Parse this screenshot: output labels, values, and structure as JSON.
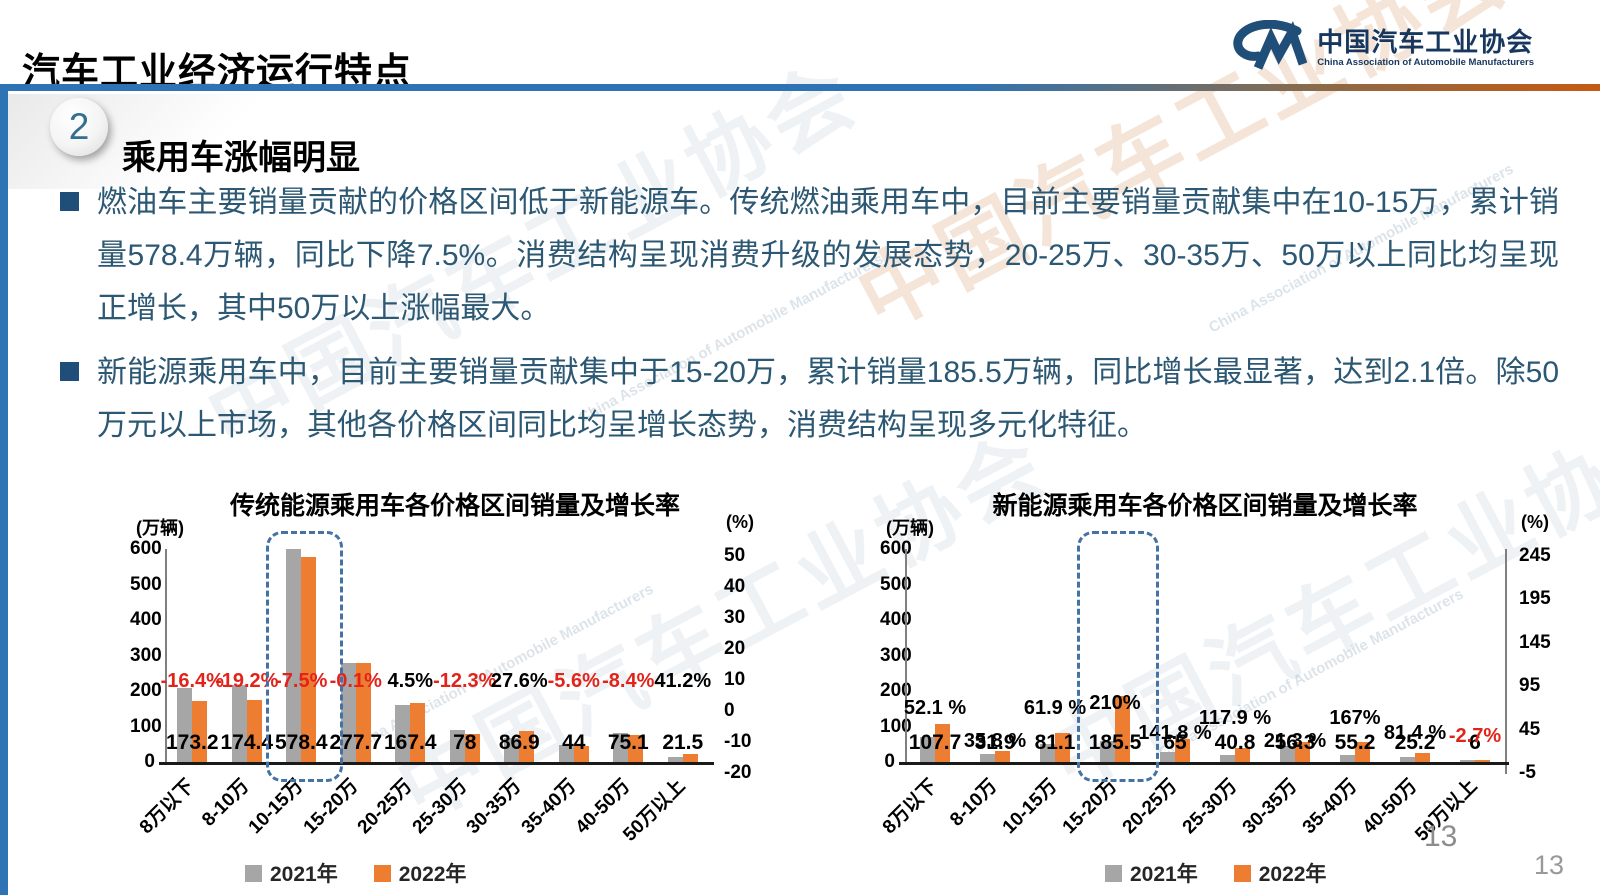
{
  "header": {
    "title": "汽车工业经济运行特点",
    "logo_cn": "中国汽车工业协会",
    "logo_en": "China Association of Automobile Manufacturers"
  },
  "section": {
    "number": "2",
    "title": "乘用车涨幅明显"
  },
  "bullets": [
    {
      "text": "燃油车主要销量贡献的价格区间低于新能源车。传统燃油乘用车中，目前主要销量贡献集中在10-15万，累计销量578.4万辆，同比下降7.5%。消费结构呈现消费升级的发展态势，20-25万、30-35万、50万以上同比均呈现正增长，其中50万以上涨幅最大。"
    },
    {
      "text": "新能源乘用车中，目前主要销量贡献集中于15-20万，累计销量185.5万辆，同比增长最显著，达到2.1倍。除50万元以上市场，其他各价格区间同比均呈增长态势，消费结构呈现多元化特征。"
    }
  ],
  "watermark": {
    "cn": "中国汽车工业协会",
    "en": "China Association of Automobile Manufacturers"
  },
  "page": {
    "number": "13",
    "number_inner": "13"
  },
  "colors": {
    "accent_blue": "#2E74B5",
    "text_blue": "#2D5873",
    "bullet_square": "#1F4E79",
    "bar_2021": "#A6A6A6",
    "bar_2022": "#ED7D31",
    "negative": "#E2231A",
    "highlight_border": "#4472A4"
  },
  "chart_data": [
    {
      "type": "bar",
      "title": "传统能源乘用车各价格区间销量及增长率",
      "unit_left": "(万辆)",
      "unit_right": "(%)",
      "ylim": [
        0,
        600
      ],
      "left_ticks": [
        600,
        500,
        400,
        300,
        200,
        100,
        0
      ],
      "right_ticks": [
        50,
        40,
        30,
        20,
        10,
        0,
        -10,
        -20
      ],
      "categories": [
        "8万以下",
        "8-10万",
        "10-15万",
        "15-20万",
        "20-25万",
        "25-30万",
        "30-35万",
        "35-40万",
        "40-50万",
        "50万以上"
      ],
      "series": [
        {
          "name": "2021年",
          "color": "#A6A6A6",
          "values": [
            207.2,
            215.8,
            625.3,
            278.0,
            160.2,
            88.9,
            68.1,
            46.6,
            82.0,
            15.2
          ],
          "note": "2021 bars unlabeled in chart; values derived from 2022 labels and growth rates"
        },
        {
          "name": "2022年",
          "color": "#ED7D31",
          "values": [
            173.2,
            174.4,
            578.4,
            277.7,
            167.4,
            78,
            86.9,
            44,
            75.1,
            21.5
          ]
        }
      ],
      "value_labels": [
        "173.2",
        "174.4",
        "578.4",
        "277.7",
        "167.4",
        "78",
        "86.9",
        "44",
        "75.1",
        "21.5"
      ],
      "growth_labels": [
        "-16.4%",
        "-19.2%",
        "-7.5%",
        "-0.1%",
        "4.5%",
        "-12.3%",
        "27.6%",
        "-5.6%",
        "-8.4%",
        "41.2%"
      ],
      "highlight_index": 2,
      "legend": [
        "2021年",
        "2022年"
      ],
      "legend_position": "bottom",
      "grid": false
    },
    {
      "type": "bar",
      "title": "新能源乘用车各价格区间销量及增长率",
      "unit_left": "(万辆)",
      "unit_right": "(%)",
      "ylim": [
        0,
        600
      ],
      "left_ticks": [
        600,
        500,
        400,
        300,
        200,
        100,
        0
      ],
      "right_ticks": [
        245,
        195,
        145,
        95,
        45,
        -5
      ],
      "categories": [
        "8万以下",
        "8-10万",
        "10-15万",
        "15-20万",
        "20-25万",
        "25-30万",
        "30-35万",
        "35-40万",
        "40-50万",
        "50万以上"
      ],
      "series": [
        {
          "name": "2021年",
          "color": "#A6A6A6",
          "values": [
            70.8,
            23.5,
            50.1,
            59.8,
            26.9,
            18.7,
            46.4,
            20.7,
            13.9,
            6.2
          ],
          "note": "2021 bars unlabeled in chart; values derived from 2022 labels and growth rates"
        },
        {
          "name": "2022年",
          "color": "#ED7D31",
          "values": [
            107.7,
            31.9,
            81.1,
            185.5,
            65,
            40.8,
            56.3,
            55.2,
            25.2,
            6
          ]
        }
      ],
      "value_labels": [
        "107.7",
        "31.9",
        "81.1",
        "185.5",
        "65",
        "40.8",
        "56.3",
        "55.2",
        "25.2",
        "6"
      ],
      "growth_labels": [
        "52.1 %",
        "35.8 %",
        "61.9 %",
        "210%",
        "141.8 %",
        "117.9 %",
        "21.3 %",
        "167%",
        "81.4 %",
        "-2.7%"
      ],
      "growth_offsets": [
        5,
        38,
        5,
        0,
        30,
        15,
        38,
        15,
        30,
        33
      ],
      "highlight_index": 3,
      "legend": [
        "2021年",
        "2022年"
      ],
      "legend_position": "bottom",
      "grid": false
    }
  ]
}
